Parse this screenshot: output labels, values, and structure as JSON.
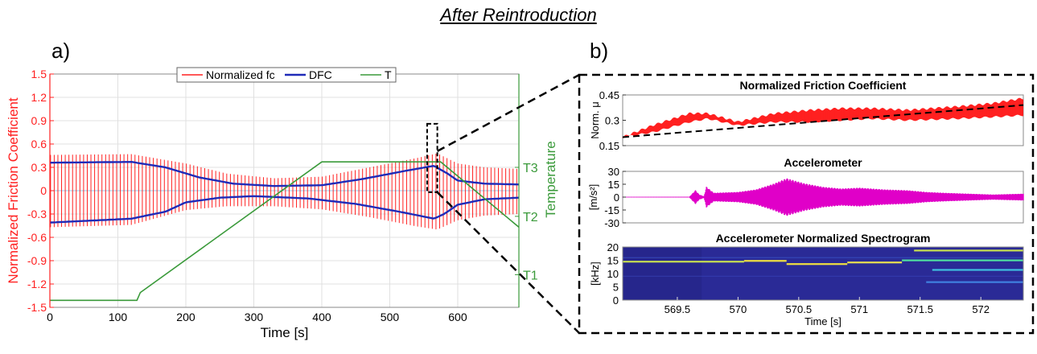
{
  "figure": {
    "header": "After Reintroduction",
    "panel_a_label": "a)",
    "panel_b_label": "b)"
  },
  "colors": {
    "red": "#ff2020",
    "blue": "#1f2bb8",
    "green": "#3a9a3a",
    "magenta": "#e000c8",
    "black": "#000000",
    "spectro_bg": "#2a2a96"
  },
  "chart_data": [
    {
      "id": "panel-a",
      "type": "line",
      "xlabel": "Time [s]",
      "ylabel": "Normalized Friction Coefficient",
      "ylabel_right": "Temperature",
      "xlim": [
        0,
        690
      ],
      "ylim": [
        -1.5,
        1.5
      ],
      "xticks": [
        0,
        100,
        200,
        300,
        400,
        500,
        600
      ],
      "yticks": [
        -1.5,
        -1.2,
        -0.9,
        -0.6,
        -0.3,
        0,
        0.3,
        0.6,
        0.9,
        1.2,
        1.5
      ],
      "yticklabels": [
        "-1.5",
        "-1.2",
        "-0.9",
        "-0.6",
        "-0.3",
        "0",
        "0.3",
        "0.6",
        "0.9",
        "1.2",
        "1.5"
      ],
      "right_ticks": [
        {
          "label": "T3",
          "value": 0.3
        },
        {
          "label": "T2",
          "value": -0.33
        },
        {
          "label": "T1",
          "value": -1.08
        }
      ],
      "grid": true,
      "legend": [
        "Normalized fc",
        "DFC",
        "T"
      ],
      "series": [
        {
          "name": "Normalized fc",
          "kind": "oscillation-envelope",
          "upper": [
            [
              0,
              0.46
            ],
            [
              120,
              0.47
            ],
            [
              200,
              0.35
            ],
            [
              260,
              0.22
            ],
            [
              330,
              0.16
            ],
            [
              400,
              0.18
            ],
            [
              470,
              0.3
            ],
            [
              540,
              0.42
            ],
            [
              570,
              0.48
            ],
            [
              600,
              0.35
            ],
            [
              640,
              0.3
            ],
            [
              690,
              0.28
            ]
          ],
          "lower": [
            [
              0,
              -0.47
            ],
            [
              120,
              -0.44
            ],
            [
              200,
              -0.25
            ],
            [
              260,
              -0.2
            ],
            [
              330,
              -0.2
            ],
            [
              400,
              -0.24
            ],
            [
              470,
              -0.34
            ],
            [
              540,
              -0.46
            ],
            [
              570,
              -0.5
            ],
            [
              600,
              -0.38
            ],
            [
              640,
              -0.32
            ],
            [
              690,
              -0.3
            ]
          ]
        },
        {
          "name": "DFC",
          "kind": "band",
          "upper": [
            [
              0,
              0.36
            ],
            [
              120,
              0.37
            ],
            [
              170,
              0.3
            ],
            [
              220,
              0.17
            ],
            [
              270,
              0.09
            ],
            [
              330,
              0.06
            ],
            [
              400,
              0.07
            ],
            [
              460,
              0.15
            ],
            [
              520,
              0.25
            ],
            [
              565,
              0.32
            ],
            [
              585,
              0.22
            ],
            [
              600,
              0.13
            ],
            [
              640,
              0.09
            ],
            [
              690,
              0.08
            ]
          ],
          "lower": [
            [
              0,
              -0.41
            ],
            [
              120,
              -0.36
            ],
            [
              170,
              -0.27
            ],
            [
              200,
              -0.15
            ],
            [
              250,
              -0.09
            ],
            [
              300,
              -0.07
            ],
            [
              380,
              -0.1
            ],
            [
              450,
              -0.17
            ],
            [
              520,
              -0.28
            ],
            [
              565,
              -0.36
            ],
            [
              580,
              -0.3
            ],
            [
              600,
              -0.18
            ],
            [
              640,
              -0.11
            ],
            [
              690,
              -0.09
            ]
          ]
        },
        {
          "name": "T",
          "x": [
            0,
            128,
            133,
            400,
            560,
            575,
            690
          ],
          "y": [
            -1.41,
            -1.41,
            -1.31,
            0.37,
            0.37,
            0.37,
            -0.47
          ]
        }
      ],
      "annotations": [
        {
          "kind": "dashed-box",
          "x": [
            555,
            570
          ],
          "y": [
            -0.02,
            0.86
          ]
        }
      ]
    },
    {
      "id": "panel-b1",
      "type": "line",
      "title": "Normalized Friction Coefficient",
      "ylabel": "Norm. μ",
      "xlim": [
        569.05,
        572.35
      ],
      "ylim": [
        0.15,
        0.45
      ],
      "yticks": [
        0.15,
        0.3,
        0.45
      ],
      "yticklabels": [
        "0.15",
        "0.3",
        "0.45"
      ],
      "series": [
        {
          "name": "",
          "kind": "oscillation-envelope",
          "upper": [
            [
              569.05,
              0.2
            ],
            [
              569.3,
              0.27
            ],
            [
              569.6,
              0.34
            ],
            [
              569.75,
              0.34
            ],
            [
              570.0,
              0.29
            ],
            [
              570.3,
              0.34
            ],
            [
              570.6,
              0.36
            ],
            [
              570.85,
              0.37
            ],
            [
              571.1,
              0.37
            ],
            [
              571.4,
              0.36
            ],
            [
              571.8,
              0.38
            ],
            [
              572.1,
              0.4
            ],
            [
              572.35,
              0.43
            ]
          ],
          "lower": [
            [
              569.05,
              0.2
            ],
            [
              569.3,
              0.23
            ],
            [
              569.6,
              0.29
            ],
            [
              569.75,
              0.31
            ],
            [
              570.0,
              0.27
            ],
            [
              570.3,
              0.29
            ],
            [
              570.6,
              0.29
            ],
            [
              570.85,
              0.3
            ],
            [
              571.1,
              0.31
            ],
            [
              571.4,
              0.3
            ],
            [
              571.8,
              0.31
            ],
            [
              572.1,
              0.32
            ],
            [
              572.35,
              0.33
            ]
          ]
        },
        {
          "name": "",
          "kind": "dashed-trend",
          "x": [
            569.05,
            572.35
          ],
          "y": [
            0.2,
            0.39
          ]
        }
      ]
    },
    {
      "id": "panel-b2",
      "type": "line",
      "title": "Accelerometer",
      "ylabel": "[m/s²]",
      "xlim": [
        569.05,
        572.35
      ],
      "ylim": [
        -30,
        30
      ],
      "yticks": [
        -30,
        -15,
        0,
        15,
        30
      ],
      "yticklabels": [
        "-30",
        "-15",
        "0",
        "15",
        "30"
      ],
      "series": [
        {
          "name": "",
          "kind": "oscillation-envelope",
          "points": [
            [
              569.05,
              0.3
            ],
            [
              569.6,
              0.4
            ],
            [
              569.65,
              8
            ],
            [
              569.68,
              3
            ],
            [
              569.72,
              1
            ],
            [
              569.74,
              12
            ],
            [
              569.8,
              5
            ],
            [
              570.0,
              6
            ],
            [
              570.15,
              9
            ],
            [
              570.3,
              16
            ],
            [
              570.4,
              22
            ],
            [
              570.55,
              16
            ],
            [
              570.7,
              12
            ],
            [
              570.85,
              10
            ],
            [
              571.0,
              11
            ],
            [
              571.2,
              9
            ],
            [
              571.4,
              8
            ],
            [
              571.55,
              6
            ],
            [
              571.7,
              5
            ],
            [
              571.9,
              4
            ],
            [
              572.1,
              3
            ],
            [
              572.35,
              4
            ]
          ]
        }
      ]
    },
    {
      "id": "panel-b3",
      "type": "heatmap",
      "title": "Accelerometer Normalized Spectrogram",
      "xlabel": "Time [s]",
      "ylabel": "[kHz]",
      "xlim": [
        569.05,
        572.35
      ],
      "ylim": [
        0,
        20
      ],
      "xticks": [
        569.5,
        570,
        570.5,
        571,
        571.5,
        572
      ],
      "xticklabels": [
        "569.5",
        "570",
        "570.5",
        "571",
        "571.5",
        "572"
      ],
      "yticks": [
        0,
        5,
        10,
        15,
        20
      ],
      "yticklabels": [
        "0",
        "5",
        "10",
        "15",
        "20"
      ],
      "bands": [
        {
          "x": [
            569.05,
            570.05
          ],
          "f": 14.5,
          "color": "#c8e050"
        },
        {
          "x": [
            570.05,
            570.4
          ],
          "f": 14.8,
          "color": "#f0e040"
        },
        {
          "x": [
            570.4,
            570.9
          ],
          "f": 13.6,
          "color": "#f0e040"
        },
        {
          "x": [
            570.9,
            571.35
          ],
          "f": 14.2,
          "color": "#e8e050"
        },
        {
          "x": [
            571.35,
            572.35
          ],
          "f": 15.0,
          "color": "#50e0a0"
        },
        {
          "x": [
            571.45,
            572.35
          ],
          "f": 18.7,
          "color": "#c8e050"
        },
        {
          "x": [
            571.6,
            572.35
          ],
          "f": 11.4,
          "color": "#40c0e0"
        },
        {
          "x": [
            571.55,
            572.35
          ],
          "f": 6.8,
          "color": "#4080e0"
        }
      ]
    }
  ]
}
